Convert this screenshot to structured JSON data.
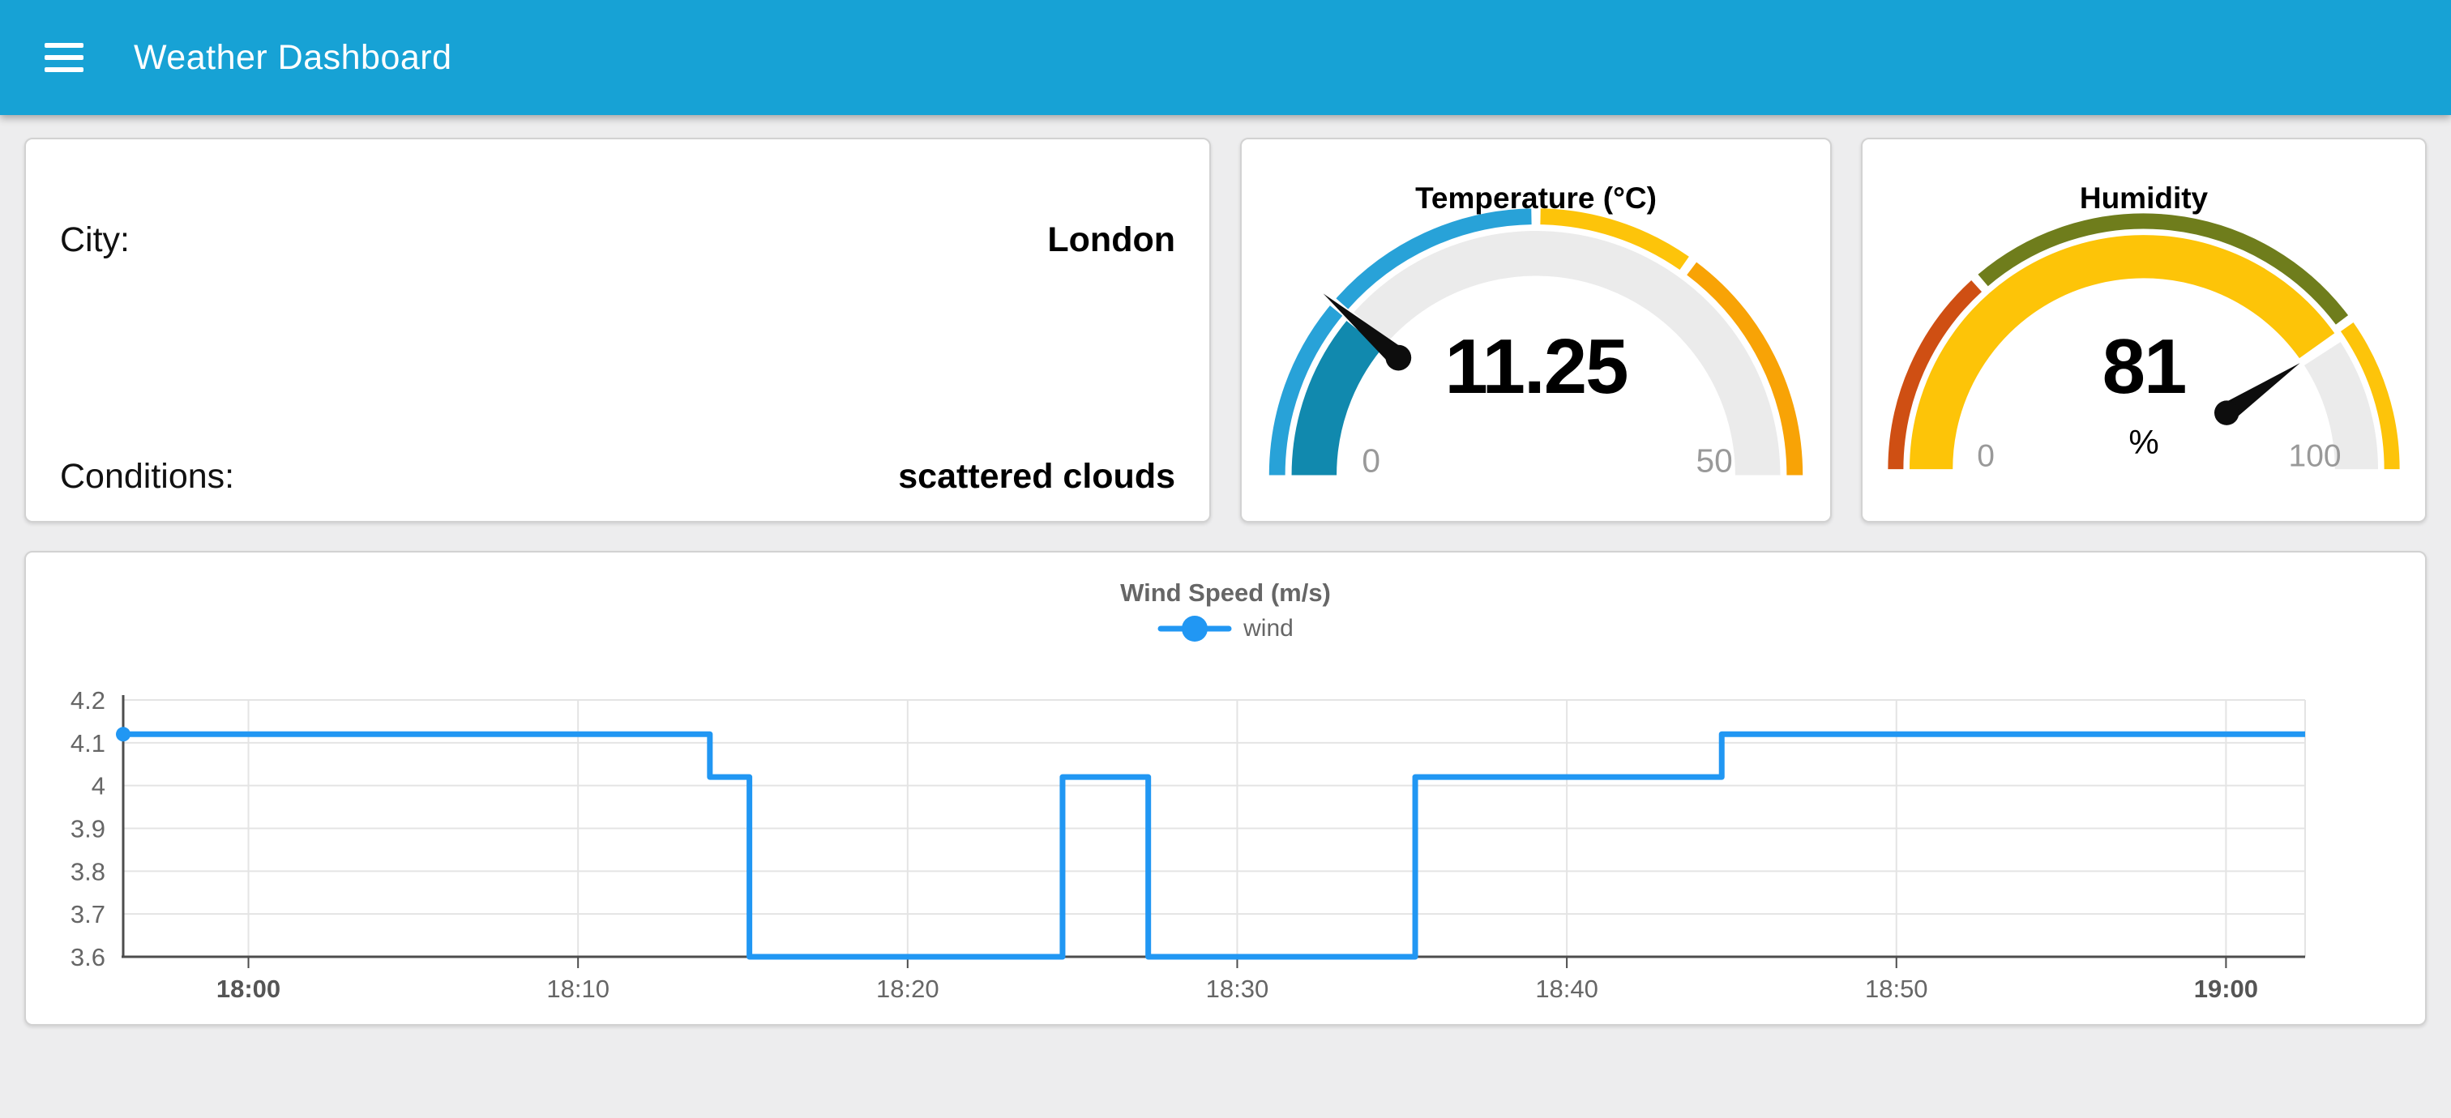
{
  "header": {
    "title": "Weather Dashboard",
    "background_color": "#17a2d5",
    "menu_icon": "hamburger"
  },
  "info_card": {
    "rows": [
      {
        "label": "City:",
        "value": "London"
      },
      {
        "label": "Conditions:",
        "value": "scattered clouds"
      }
    ]
  },
  "chart_data": [
    {
      "type": "gauge",
      "title": "Temperature (°C)",
      "value": 11.25,
      "value_label": "11.25",
      "unit": "",
      "min": 0,
      "max": 50,
      "min_label": "0",
      "max_label": "50",
      "fill_color": "#1189ae",
      "track_color": "#ebebeb",
      "needle_color": "#0d0d0d",
      "ring_gap_at_value": true,
      "zones": [
        {
          "from": 0,
          "to": 25,
          "color": "#28a2d8"
        },
        {
          "from": 25,
          "to": 35,
          "color": "#fdc40a"
        },
        {
          "from": 35,
          "to": 50,
          "color": "#f8a306"
        }
      ]
    },
    {
      "type": "gauge",
      "title": "Humidity",
      "value": 81,
      "value_label": "81",
      "unit": "%",
      "min": 0,
      "max": 100,
      "min_label": "0",
      "max_label": "100",
      "fill_color": "#fdc408",
      "track_color": "#ebebeb",
      "needle_color": "#0d0d0d",
      "ring_gap_at_value": false,
      "zones": [
        {
          "from": 0,
          "to": 27,
          "color": "#cf4f13"
        },
        {
          "from": 27,
          "to": 80,
          "color": "#6f7d1c"
        },
        {
          "from": 80,
          "to": 100,
          "color": "#fdc40a"
        }
      ]
    },
    {
      "type": "line",
      "title": "Wind Speed (m/s)",
      "legend": [
        {
          "label": "wind",
          "color": "#2197f3"
        }
      ],
      "line_color": "#2197f3",
      "grid_color": "#e4e4e4",
      "axis_color": "#4d4d4d",
      "ylim": [
        3.6,
        4.2
      ],
      "yticks": [
        {
          "value": 3.6,
          "label": "3.6"
        },
        {
          "value": 3.7,
          "label": "3.7"
        },
        {
          "value": 3.8,
          "label": "3.8"
        },
        {
          "value": 3.9,
          "label": "3.9"
        },
        {
          "value": 4.0,
          "label": "4"
        },
        {
          "value": 4.1,
          "label": "4.1"
        },
        {
          "value": 4.2,
          "label": "4.2"
        }
      ],
      "xticks": [
        {
          "minute": 0,
          "label": "18:00",
          "bold": true
        },
        {
          "minute": 10,
          "label": "18:10",
          "bold": false
        },
        {
          "minute": 20,
          "label": "18:20",
          "bold": false
        },
        {
          "minute": 30,
          "label": "18:30",
          "bold": false
        },
        {
          "minute": 40,
          "label": "18:40",
          "bold": false
        },
        {
          "minute": 50,
          "label": "18:50",
          "bold": false
        },
        {
          "minute": 60,
          "label": "19:00",
          "bold": true
        }
      ],
      "x_domain_minutes": [
        -3.8,
        62.4
      ],
      "series": [
        {
          "name": "wind",
          "color": "#2197f3",
          "segments": [
            {
              "start": "17:56",
              "end": "18:14",
              "start_min": -3.8,
              "end_min": 14,
              "value": 4.12
            },
            {
              "start": "18:14",
              "end": "18:15",
              "start_min": 14,
              "end_min": 15.2,
              "value": 4.02
            },
            {
              "start": "18:15",
              "end": "18:25",
              "start_min": 15.2,
              "end_min": 24.7,
              "value": 3.6
            },
            {
              "start": "18:25",
              "end": "18:27",
              "start_min": 24.7,
              "end_min": 27.3,
              "value": 4.02
            },
            {
              "start": "18:27",
              "end": "18:35",
              "start_min": 27.3,
              "end_min": 35.4,
              "value": 3.6
            },
            {
              "start": "18:35",
              "end": "18:45",
              "start_min": 35.4,
              "end_min": 44.7,
              "value": 4.02
            },
            {
              "start": "18:45",
              "end": "19:02",
              "start_min": 44.7,
              "end_min": 62.4,
              "value": 4.12
            }
          ]
        }
      ]
    }
  ]
}
